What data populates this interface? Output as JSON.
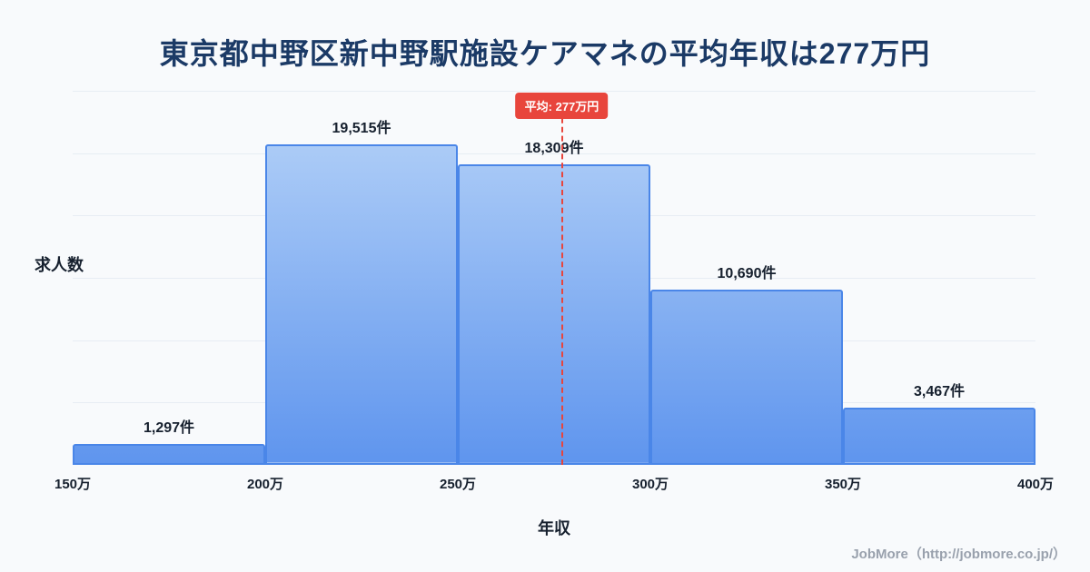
{
  "header": {
    "title": "東京都中野区新中野駅施設ケアマネの平均年収は277万円"
  },
  "chart_data": {
    "type": "bar",
    "subtype": "histogram",
    "title": "東京都中野区新中野駅施設ケアマネの平均年収は277万円",
    "xlabel": "年収",
    "ylabel": "求人数",
    "x_ticks": [
      "150万",
      "200万",
      "250万",
      "300万",
      "350万",
      "400万"
    ],
    "bin_edges_man": [
      150,
      200,
      250,
      300,
      350,
      400
    ],
    "values": [
      1297,
      19515,
      18309,
      10690,
      3467
    ],
    "value_labels": [
      "1,297件",
      "19,515件",
      "18,309件",
      "10,690件",
      "3,467件"
    ],
    "ylim": [
      0,
      22800
    ],
    "x_range_man": [
      150,
      400
    ],
    "grid": "horizontal",
    "legend": "none",
    "average_line": {
      "value_man": 277,
      "label": "平均: 277万円",
      "color": "#e8453c",
      "style": "dashed"
    },
    "colors": {
      "background": "#f8fafc",
      "bar_fill_top": "#b9d5f8",
      "bar_fill_bottom": "#5f95ee",
      "bar_border": "#4a86e8",
      "title_text": "#1b3a66",
      "axis_text": "#16202e",
      "gridline": "#e7edf4"
    }
  },
  "footer": {
    "credit": "JobMore（http://jobmore.co.jp/）"
  }
}
